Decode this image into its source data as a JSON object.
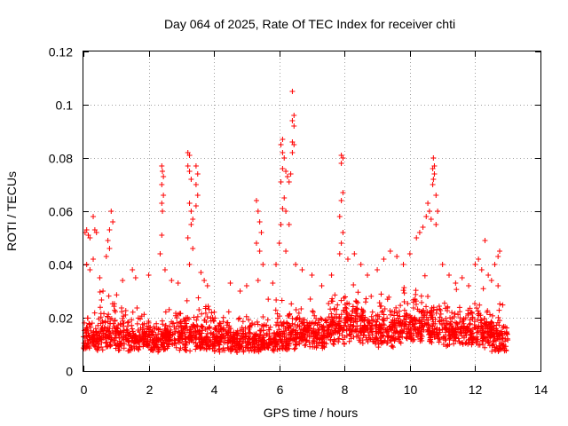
{
  "chart_data": {
    "type": "scatter",
    "title": "Day 064 of 2025, Rate Of TEC Index for receiver chti",
    "xlabel": "GPS time / hours",
    "ylabel": "ROTI / TECUs",
    "xlim": [
      0,
      14
    ],
    "ylim": [
      0,
      0.12
    ],
    "xticks": [
      0,
      2,
      4,
      6,
      8,
      10,
      12,
      14
    ],
    "xtick_labels": [
      "0",
      "2",
      "4",
      "6",
      "8",
      "10",
      "12",
      "14"
    ],
    "yticks": [
      0,
      0.02,
      0.04,
      0.06,
      0.08,
      0.1,
      0.12
    ],
    "ytick_labels": [
      "0",
      "0.02",
      "0.04",
      "0.06",
      "0.08",
      "0.1",
      "0.12"
    ],
    "grid": true,
    "marker": "+",
    "marker_color": "#ff0000",
    "series": [
      {
        "name": "ROTI",
        "points": [
          [
            0.05,
            0.052
          ],
          [
            0.1,
            0.053
          ],
          [
            0.15,
            0.051
          ],
          [
            0.2,
            0.05
          ],
          [
            0.3,
            0.058
          ],
          [
            0.35,
            0.053
          ],
          [
            0.4,
            0.052
          ],
          [
            0.1,
            0.04
          ],
          [
            0.2,
            0.038
          ],
          [
            0.3,
            0.042
          ],
          [
            0.5,
            0.035
          ],
          [
            0.6,
            0.03
          ],
          [
            0.75,
            0.049
          ],
          [
            0.8,
            0.053
          ],
          [
            0.85,
            0.06
          ],
          [
            0.9,
            0.056
          ],
          [
            0.8,
            0.046
          ],
          [
            0.7,
            0.043
          ],
          [
            1.2,
            0.034
          ],
          [
            1.5,
            0.038
          ],
          [
            1.6,
            0.035
          ],
          [
            2.0,
            0.036
          ],
          [
            2.4,
            0.077
          ],
          [
            2.42,
            0.075
          ],
          [
            2.45,
            0.073
          ],
          [
            2.4,
            0.07
          ],
          [
            2.45,
            0.066
          ],
          [
            2.4,
            0.063
          ],
          [
            2.42,
            0.06
          ],
          [
            2.4,
            0.051
          ],
          [
            2.35,
            0.044
          ],
          [
            2.5,
            0.038
          ],
          [
            2.7,
            0.034
          ],
          [
            2.9,
            0.033
          ],
          [
            3.2,
            0.082
          ],
          [
            3.25,
            0.081
          ],
          [
            3.2,
            0.077
          ],
          [
            3.25,
            0.075
          ],
          [
            3.3,
            0.072
          ],
          [
            3.25,
            0.063
          ],
          [
            3.3,
            0.06
          ],
          [
            3.35,
            0.057
          ],
          [
            3.3,
            0.055
          ],
          [
            3.2,
            0.05
          ],
          [
            3.35,
            0.046
          ],
          [
            3.25,
            0.04
          ],
          [
            3.45,
            0.077
          ],
          [
            3.5,
            0.074
          ],
          [
            3.45,
            0.07
          ],
          [
            3.5,
            0.066
          ],
          [
            3.45,
            0.062
          ],
          [
            3.6,
            0.037
          ],
          [
            3.7,
            0.034
          ],
          [
            3.8,
            0.032
          ],
          [
            4.5,
            0.033
          ],
          [
            4.8,
            0.03
          ],
          [
            5.0,
            0.032
          ],
          [
            5.3,
            0.064
          ],
          [
            5.35,
            0.06
          ],
          [
            5.4,
            0.056
          ],
          [
            5.45,
            0.052
          ],
          [
            5.3,
            0.048
          ],
          [
            5.4,
            0.045
          ],
          [
            5.5,
            0.04
          ],
          [
            5.35,
            0.034
          ],
          [
            5.8,
            0.033
          ],
          [
            5.9,
            0.04
          ],
          [
            6.0,
            0.048
          ],
          [
            6.05,
            0.055
          ],
          [
            6.1,
            0.061
          ],
          [
            6.15,
            0.065
          ],
          [
            6.05,
            0.071
          ],
          [
            6.1,
            0.076
          ],
          [
            6.15,
            0.08
          ],
          [
            6.1,
            0.082
          ],
          [
            6.05,
            0.085
          ],
          [
            6.1,
            0.087
          ],
          [
            6.2,
            0.075
          ],
          [
            6.25,
            0.073
          ],
          [
            6.3,
            0.071
          ],
          [
            6.35,
            0.074
          ],
          [
            6.2,
            0.06
          ],
          [
            6.3,
            0.055
          ],
          [
            6.4,
            0.105
          ],
          [
            6.45,
            0.096
          ],
          [
            6.4,
            0.094
          ],
          [
            6.45,
            0.092
          ],
          [
            6.4,
            0.086
          ],
          [
            6.45,
            0.085
          ],
          [
            6.4,
            0.082
          ],
          [
            6.2,
            0.045
          ],
          [
            6.5,
            0.04
          ],
          [
            6.7,
            0.038
          ],
          [
            7.0,
            0.036
          ],
          [
            7.3,
            0.032
          ],
          [
            7.6,
            0.036
          ],
          [
            7.9,
            0.081
          ],
          [
            7.95,
            0.08
          ],
          [
            7.9,
            0.078
          ],
          [
            7.95,
            0.067
          ],
          [
            7.9,
            0.064
          ],
          [
            7.85,
            0.058
          ],
          [
            7.95,
            0.052
          ],
          [
            7.9,
            0.048
          ],
          [
            7.85,
            0.044
          ],
          [
            8.1,
            0.042
          ],
          [
            8.3,
            0.044
          ],
          [
            8.5,
            0.04
          ],
          [
            8.7,
            0.036
          ],
          [
            9.0,
            0.038
          ],
          [
            9.2,
            0.042
          ],
          [
            9.4,
            0.045
          ],
          [
            9.6,
            0.043
          ],
          [
            9.8,
            0.04
          ],
          [
            10.0,
            0.044
          ],
          [
            10.2,
            0.05
          ],
          [
            10.3,
            0.052
          ],
          [
            10.4,
            0.054
          ],
          [
            10.5,
            0.058
          ],
          [
            10.55,
            0.063
          ],
          [
            10.6,
            0.06
          ],
          [
            10.65,
            0.057
          ],
          [
            10.7,
            0.07
          ],
          [
            10.72,
            0.072
          ],
          [
            10.75,
            0.074
          ],
          [
            10.7,
            0.076
          ],
          [
            10.75,
            0.077
          ],
          [
            10.72,
            0.08
          ],
          [
            10.8,
            0.066
          ],
          [
            10.85,
            0.06
          ],
          [
            10.8,
            0.055
          ],
          [
            11.0,
            0.04
          ],
          [
            11.2,
            0.036
          ],
          [
            11.4,
            0.033
          ],
          [
            11.6,
            0.035
          ],
          [
            11.8,
            0.032
          ],
          [
            12.0,
            0.04
          ],
          [
            12.1,
            0.042
          ],
          [
            12.2,
            0.038
          ],
          [
            12.3,
            0.049
          ],
          [
            12.4,
            0.036
          ],
          [
            12.5,
            0.034
          ],
          [
            12.6,
            0.04
          ],
          [
            12.7,
            0.043
          ],
          [
            12.75,
            0.045
          ],
          [
            12.7,
            0.032
          ]
        ],
        "density_profile": {
          "x_start": 0.0,
          "x_step": 0.5,
          "base_low": [
            0.006,
            0.006,
            0.006,
            0.006,
            0.006,
            0.006,
            0.006,
            0.006,
            0.006,
            0.006,
            0.006,
            0.006,
            0.006,
            0.007,
            0.007,
            0.008,
            0.009,
            0.008,
            0.007,
            0.008,
            0.009,
            0.009,
            0.008,
            0.008,
            0.007,
            0.006
          ],
          "base_high": [
            0.02,
            0.026,
            0.022,
            0.02,
            0.02,
            0.022,
            0.024,
            0.022,
            0.02,
            0.018,
            0.018,
            0.022,
            0.024,
            0.024,
            0.022,
            0.028,
            0.03,
            0.028,
            0.026,
            0.028,
            0.03,
            0.026,
            0.024,
            0.024,
            0.026,
            0.022
          ],
          "x_end": 12.8,
          "points_per_step": 90
        }
      }
    ]
  }
}
